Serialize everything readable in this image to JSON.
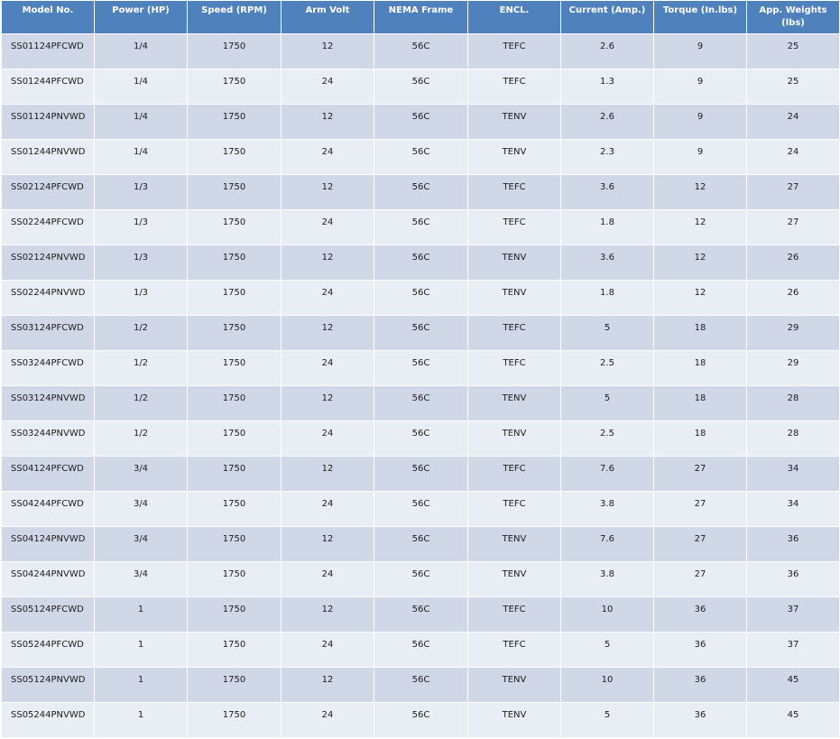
{
  "table": {
    "headers": [
      "Model No.",
      "Power (HP)",
      "Speed (RPM)",
      "Arm Volt",
      "NEMA Frame",
      "ENCL.",
      "Current  (Amp.)",
      "Torque  (In.lbs)",
      "App. Weights (lbs)"
    ],
    "rows": [
      [
        "SS01124PFCWD",
        "1/4",
        "1750",
        "12",
        "56C",
        "TEFC",
        "2.6",
        "9",
        "25"
      ],
      [
        "SS01244PFCWD",
        "1/4",
        "1750",
        "24",
        "56C",
        "TEFC",
        "1.3",
        "9",
        "25"
      ],
      [
        "SS01124PNVWD",
        "1/4",
        "1750",
        "12",
        "56C",
        "TENV",
        "2.6",
        "9",
        "24"
      ],
      [
        "SS01244PNVWD",
        "1/4",
        "1750",
        "24",
        "56C",
        "TENV",
        "2.3",
        "9",
        "24"
      ],
      [
        "SS02124PFCWD",
        "1/3",
        "1750",
        "12",
        "56C",
        "TEFC",
        "3.6",
        "12",
        "27"
      ],
      [
        "SS02244PFCWD",
        "1/3",
        "1750",
        "24",
        "56C",
        "TEFC",
        "1.8",
        "12",
        "27"
      ],
      [
        "SS02124PNVWD",
        "1/3",
        "1750",
        "12",
        "56C",
        "TENV",
        "3.6",
        "12",
        "26"
      ],
      [
        "SS02244PNVWD",
        "1/3",
        "1750",
        "24",
        "56C",
        "TENV",
        "1.8",
        "12",
        "26"
      ],
      [
        "SS03124PFCWD",
        "1/2",
        "1750",
        "12",
        "56C",
        "TEFC",
        "5",
        "18",
        "29"
      ],
      [
        "SS03244PFCWD",
        "1/2",
        "1750",
        "24",
        "56C",
        "TEFC",
        "2.5",
        "18",
        "29"
      ],
      [
        "SS03124PNVWD",
        "1/2",
        "1750",
        "12",
        "56C",
        "TENV",
        "5",
        "18",
        "28"
      ],
      [
        "SS03244PNVWD",
        "1/2",
        "1750",
        "24",
        "56C",
        "TENV",
        "2.5",
        "18",
        "28"
      ],
      [
        "SS04124PFCWD",
        "3/4",
        "1750",
        "12",
        "56C",
        "TEFC",
        "7.6",
        "27",
        "34"
      ],
      [
        "SS04244PFCWD",
        "3/4",
        "1750",
        "24",
        "56C",
        "TEFC",
        "3.8",
        "27",
        "34"
      ],
      [
        "SS04124PNVWD",
        "3/4",
        "1750",
        "12",
        "56C",
        "TENV",
        "7.6",
        "27",
        "36"
      ],
      [
        "SS04244PNVWD",
        "3/4",
        "1750",
        "24",
        "56C",
        "TENV",
        "3.8",
        "27",
        "36"
      ],
      [
        "SS05124PFCWD",
        "1",
        "1750",
        "12",
        "56C",
        "TEFC",
        "10",
        "36",
        "37"
      ],
      [
        "SS05244PFCWD",
        "1",
        "1750",
        "24",
        "56C",
        "TEFC",
        "5",
        "36",
        "37"
      ],
      [
        "SS05124PNVWD",
        "1",
        "1750",
        "12",
        "56C",
        "TENV",
        "10",
        "36",
        "45"
      ],
      [
        "SS05244PNVWD",
        "1",
        "1750",
        "24",
        "56C",
        "TENV",
        "5",
        "36",
        "45"
      ]
    ]
  },
  "colors": {
    "header_bg": "#4f81bd",
    "row_band_dark": "#d0d8e8",
    "row_band_light": "#e9edf4"
  }
}
